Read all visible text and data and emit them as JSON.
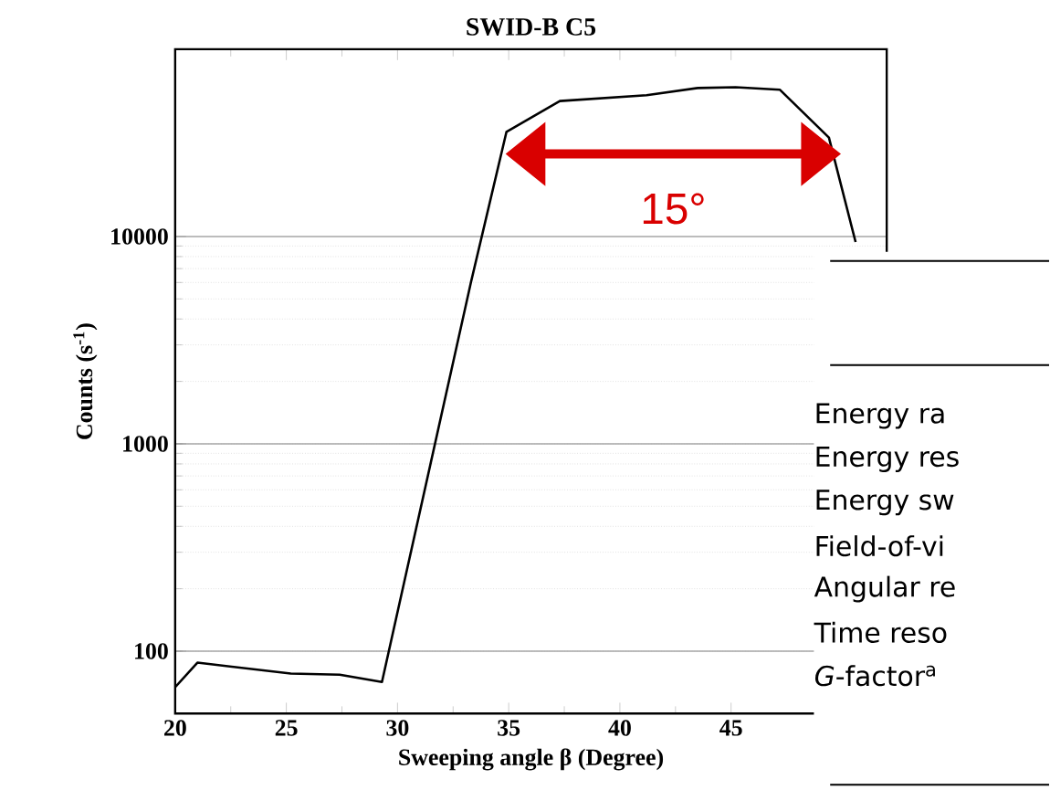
{
  "chart_data": {
    "type": "line",
    "title": "SWID-B C5",
    "xlabel": "Sweeping angle β (Degree)",
    "ylabel": "Counts (s$^{-1}$)",
    "log": "y",
    "grid": "y",
    "xlim": [
      20,
      52
    ],
    "xticks": [
      20,
      25,
      30,
      35,
      40,
      45
    ],
    "ylim": [
      50,
      80000
    ],
    "yticks": [
      100,
      1000,
      10000
    ],
    "marker": "none",
    "line_style": "solid",
    "series": [
      {
        "color": "#000000",
        "x": [
          20,
          21,
          25.2,
          27.4,
          29.3,
          33.3,
          34.9,
          37.3,
          41.2,
          43.5,
          45.2,
          47.2,
          49.4,
          50.6
        ],
        "values": [
          67,
          88,
          78,
          77,
          71,
          6000,
          32000,
          45000,
          48000,
          52000,
          52500,
          51000,
          30000,
          9400
        ]
      }
    ],
    "annotations": [
      "15°",
      "Energy ra",
      "Energy res",
      "Energy sw",
      "Field-of-vi",
      "Angular re",
      "Time reso",
      "*G*-factor$^{a}$"
    ]
  }
}
